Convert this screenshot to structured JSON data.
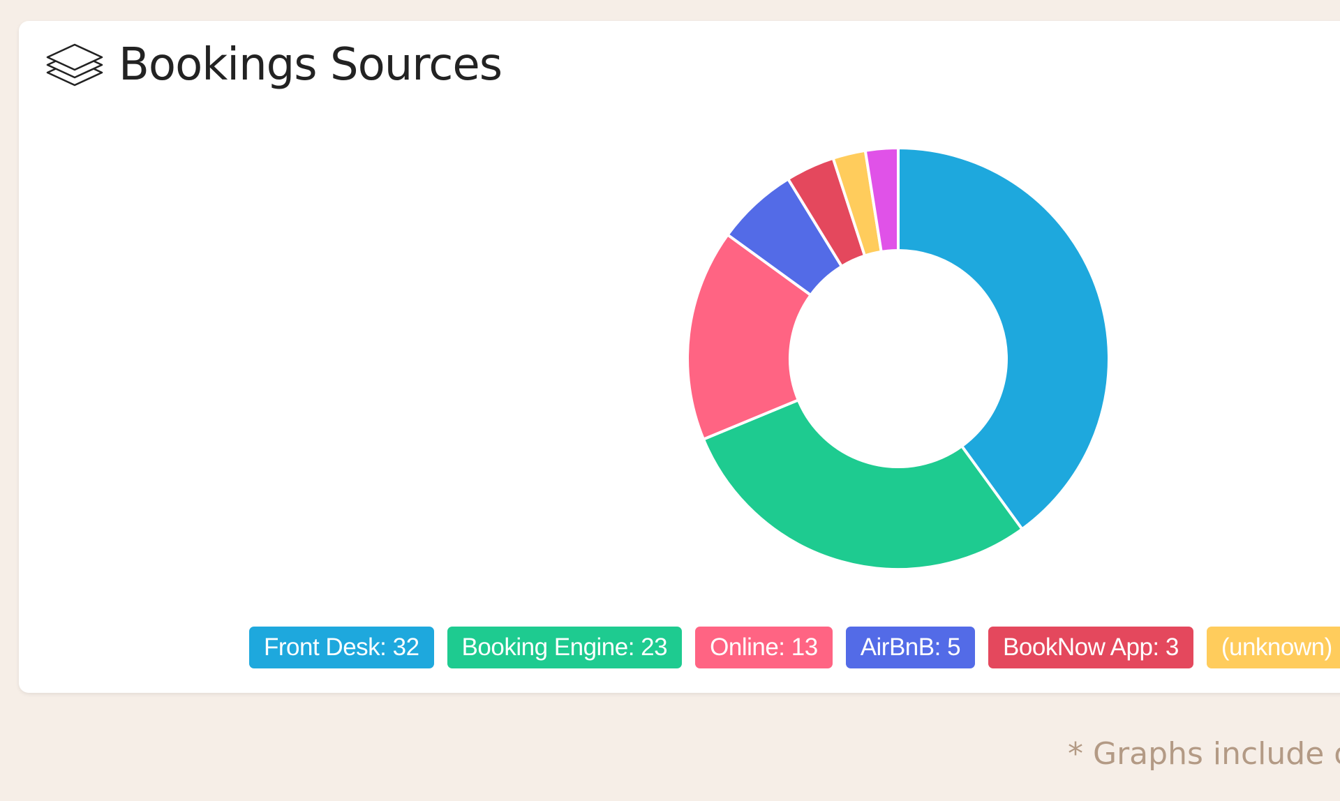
{
  "card": {
    "title": "Bookings Sources",
    "icon": "layers-icon"
  },
  "chart_data": {
    "type": "pie",
    "variant": "donut",
    "slices": [
      {
        "label": "Front Desk",
        "value": 32,
        "color": "#1ea8dd"
      },
      {
        "label": "Booking Engine",
        "value": 23,
        "color": "#1ecb90"
      },
      {
        "label": "Online",
        "value": 13,
        "color": "#ff6483"
      },
      {
        "label": "AirBnB",
        "value": 5,
        "color": "#536be7"
      },
      {
        "label": "BookNow App",
        "value": 3,
        "color": "#e4485d"
      },
      {
        "label": "(unknown)",
        "value": 2,
        "color": "#ffcc5c"
      },
      {
        "label": "",
        "value": 2,
        "color": "#e052e8"
      }
    ]
  },
  "legend": [
    {
      "text": "Front Desk: 32",
      "color": "#1ea8dd"
    },
    {
      "text": "Booking Engine: 23",
      "color": "#1ecb90"
    },
    {
      "text": "Online: 13",
      "color": "#ff6483"
    },
    {
      "text": "AirBnB: 5",
      "color": "#536be7"
    },
    {
      "text": "BookNow App: 3",
      "color": "#e4485d"
    },
    {
      "text": "(unknown)",
      "color": "#ffcc5c"
    }
  ],
  "footnote": "* Graphs include or"
}
